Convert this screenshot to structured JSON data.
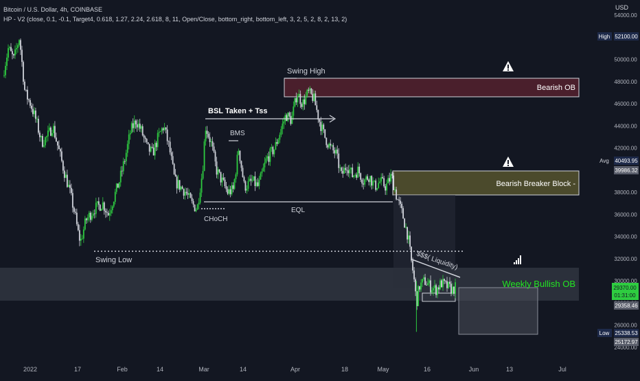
{
  "header": {
    "symbol_line": "Bitcoin / U.S. Dollar, 4h, COINBASE",
    "indicator_line": "HP - V2 (close, 0.1, -0.1, Target4, 0.618, 1.27, 2.24, 2.618, 8, 11, Open/Close, bottom_right, bottom_left, 3, 2, 5, 2, 8, 2, 13, 2)",
    "currency": "USD"
  },
  "colors": {
    "background": "#131722",
    "bull_candle": "#2ecc40",
    "bear_candle": "#d1d4dc",
    "bearish_ob": "#4a1f2c",
    "breaker_block": "#4b4a2c",
    "bullish_ob_text": "#22e622",
    "price_label": "#2ecc40",
    "high_low_label": "#1e2a4a"
  },
  "chart_data": {
    "type": "candlestick",
    "x_tick_labels": [
      "2022",
      "17",
      "Feb",
      "14",
      "Mar",
      "14",
      "Apr",
      "18",
      "May",
      "16",
      "Jun",
      "13",
      "Jul"
    ],
    "y_tick_labels": [
      "24000.00",
      "26000.00",
      "28000.00",
      "30000.00",
      "32000.00",
      "34000.00",
      "36000.00",
      "38000.00",
      "40000.00",
      "42000.00",
      "44000.00",
      "46000.00",
      "48000.00",
      "50000.00",
      "52000.00",
      "54000.00"
    ],
    "ylim": [
      24000,
      54000
    ],
    "price_path": [
      [
        0,
        48500
      ],
      [
        2,
        51000
      ],
      [
        4,
        50000
      ],
      [
        6,
        52000
      ],
      [
        8,
        47000
      ],
      [
        10,
        46000
      ],
      [
        12,
        44500
      ],
      [
        14,
        42500
      ],
      [
        16,
        43000
      ],
      [
        18,
        44000
      ],
      [
        20,
        42000
      ],
      [
        22,
        40000
      ],
      [
        24,
        38200
      ],
      [
        26,
        36000
      ],
      [
        27,
        34500
      ],
      [
        28,
        33500
      ],
      [
        30,
        35500
      ],
      [
        33,
        36500
      ],
      [
        36,
        37000
      ],
      [
        38,
        36000
      ],
      [
        40,
        37500
      ],
      [
        42,
        39000
      ],
      [
        44,
        41000
      ],
      [
        46,
        43500
      ],
      [
        48,
        44500
      ],
      [
        50,
        43500
      ],
      [
        52,
        42000
      ],
      [
        54,
        41500
      ],
      [
        56,
        43000
      ],
      [
        58,
        44000
      ],
      [
        60,
        42000
      ],
      [
        62,
        39000
      ],
      [
        64,
        38500
      ],
      [
        66,
        38000
      ],
      [
        68,
        37000
      ],
      [
        70,
        36500
      ],
      [
        72,
        40000
      ],
      [
        73,
        44000
      ],
      [
        75,
        42500
      ],
      [
        77,
        40000
      ],
      [
        79,
        39000
      ],
      [
        81,
        38000
      ],
      [
        83,
        38200
      ],
      [
        85,
        42000
      ],
      [
        87,
        38500
      ],
      [
        90,
        39000
      ],
      [
        92,
        38500
      ],
      [
        95,
        41000
      ],
      [
        98,
        42000
      ],
      [
        100,
        43500
      ],
      [
        102,
        45000
      ],
      [
        104,
        44500
      ],
      [
        106,
        47000
      ],
      [
        108,
        46000
      ],
      [
        110,
        47000
      ],
      [
        112,
        46500
      ],
      [
        114,
        44500
      ],
      [
        116,
        43000
      ],
      [
        118,
        42000
      ],
      [
        120,
        41500
      ],
      [
        122,
        39500
      ],
      [
        124,
        40500
      ],
      [
        126,
        39500
      ],
      [
        128,
        40000
      ],
      [
        130,
        39000
      ],
      [
        132,
        39500
      ],
      [
        134,
        38500
      ],
      [
        136,
        39000
      ],
      [
        138,
        38500
      ],
      [
        140,
        39500
      ],
      [
        142,
        37500
      ],
      [
        144,
        36000
      ],
      [
        146,
        34000
      ],
      [
        147,
        32000
      ],
      [
        148,
        30500
      ],
      [
        149,
        28000
      ],
      [
        150,
        29500
      ],
      [
        152,
        30000
      ],
      [
        154,
        29500
      ],
      [
        156,
        29200
      ],
      [
        158,
        29800
      ],
      [
        160,
        29500
      ],
      [
        162,
        29200
      ],
      [
        163,
        29400
      ]
    ],
    "last_price": "29370.00",
    "countdown": "01:31:00",
    "annotations": {
      "swing_high": "Swing High",
      "bsl_taken": "BSL Taken + Tss",
      "bms": "BMS",
      "choch": "CHoCH",
      "eql": "EQL",
      "swing_low": "Swing Low",
      "liquidity": "$$$( Liquidity)",
      "bearish_ob": "Bearish OB",
      "bearish_breaker": "Bearish Breaker Block -",
      "weekly_bullish_ob": "Weekly Bullish OB"
    },
    "price_labels": {
      "high_tag": "High",
      "high_value": "52100.00",
      "avg_tag": "Avg",
      "avg_value": "40493.95",
      "breaker_value": "39986.32",
      "ob_value": "29358.46",
      "low_tag": "Low",
      "low_value": "25338.53",
      "bottom_value": "25172.97"
    },
    "levels": {
      "bearish_ob": [
        46800,
        48400
      ],
      "breaker": [
        37700,
        39900
      ],
      "weekly_ob": [
        28800,
        31200
      ],
      "swing_low": 32800,
      "eql": 37000
    }
  }
}
